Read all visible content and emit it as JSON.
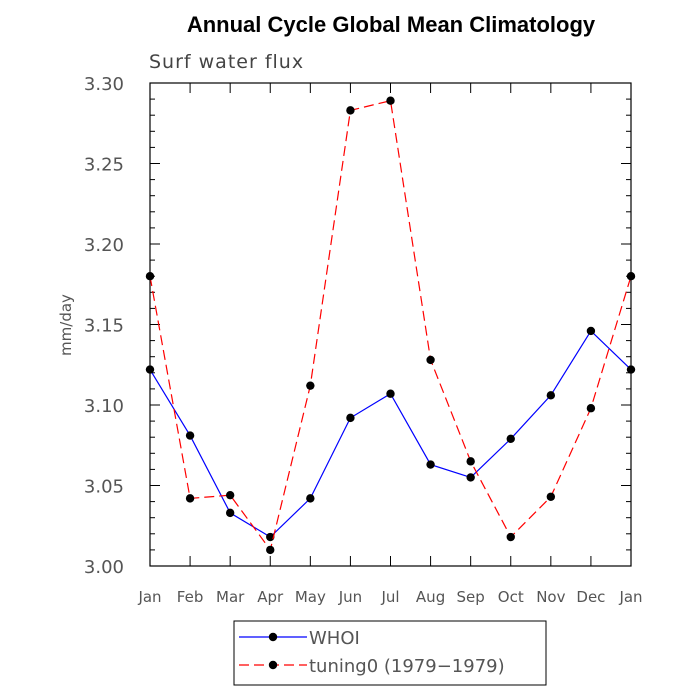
{
  "chart_data": {
    "type": "line",
    "title": "Annual Cycle Global Mean Climatology",
    "subtitle": "Surf water flux",
    "xlabel": "",
    "ylabel": "mm/day",
    "ylim": [
      3.0,
      3.3
    ],
    "yticks": [
      "3.00",
      "3.05",
      "3.10",
      "3.15",
      "3.20",
      "3.25",
      "3.30"
    ],
    "categories": [
      "Jan",
      "Feb",
      "Mar",
      "Apr",
      "May",
      "Jun",
      "Jul",
      "Aug",
      "Sep",
      "Oct",
      "Nov",
      "Dec",
      "Jan"
    ],
    "series": [
      {
        "name": "WHOI",
        "color": "#0000ff",
        "style": "solid",
        "values": [
          3.122,
          3.081,
          3.033,
          3.018,
          3.042,
          3.092,
          3.107,
          3.063,
          3.055,
          3.079,
          3.106,
          3.146,
          3.122
        ]
      },
      {
        "name": "tuning0 (1979−1979)",
        "color": "#ff0000",
        "style": "dashed",
        "values": [
          3.18,
          3.042,
          3.044,
          3.01,
          3.112,
          3.283,
          3.289,
          3.128,
          3.065,
          3.018,
          3.043,
          3.098,
          3.18
        ]
      }
    ]
  }
}
